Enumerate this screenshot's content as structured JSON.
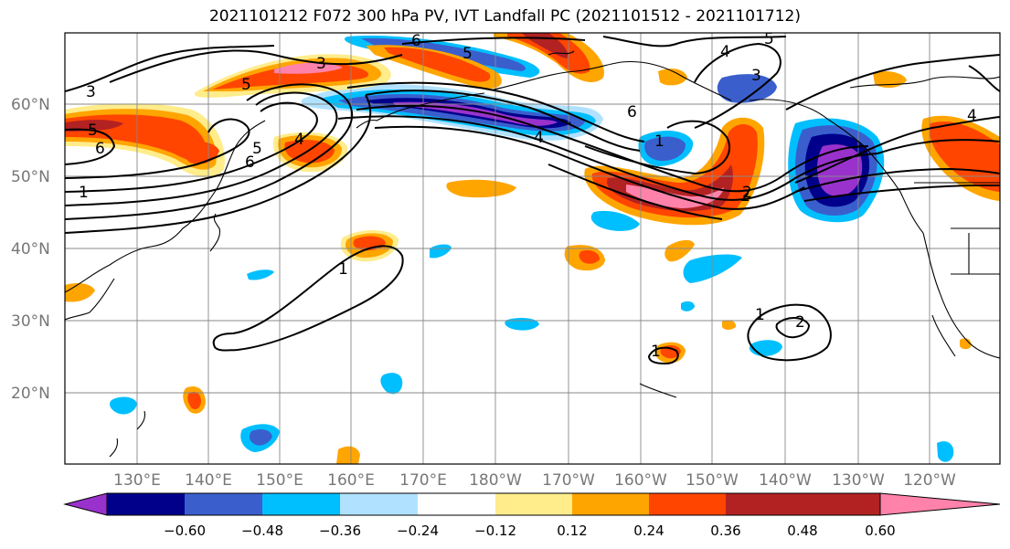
{
  "title": "2021101212 F072 300 hPa PV, IVT Landfall PC (2021101512 - 2021101712)",
  "lat_labels": [
    "60°N",
    "50°N",
    "40°N",
    "30°N",
    "20°N"
  ],
  "lon_labels": [
    "130°E",
    "140°E",
    "150°E",
    "160°E",
    "170°E",
    "180°W",
    "170°W",
    "160°W",
    "150°W",
    "140°W",
    "130°W",
    "120°W"
  ],
  "colorbar": {
    "ticks": [
      "−0.60",
      "−0.48",
      "−0.36",
      "−0.24",
      "−0.12",
      "0.12",
      "0.24",
      "0.36",
      "0.48",
      "0.60"
    ],
    "colors": [
      "#9932CC",
      "#00008B",
      "#3A5FCD",
      "#00BFFF",
      "#B0E2FF",
      "#FFFFFF",
      "#FFEC8B",
      "#FFA500",
      "#FF4500",
      "#B22222",
      "#FF82AB"
    ]
  },
  "contour_labels": [
    "3",
    "5",
    "6",
    "3",
    "5",
    "4",
    "6",
    "1",
    "5",
    "6",
    "4",
    "3",
    "5",
    "1",
    "1",
    "2",
    "2",
    "1",
    "4",
    "5",
    "4",
    "6",
    "2",
    "1"
  ]
}
